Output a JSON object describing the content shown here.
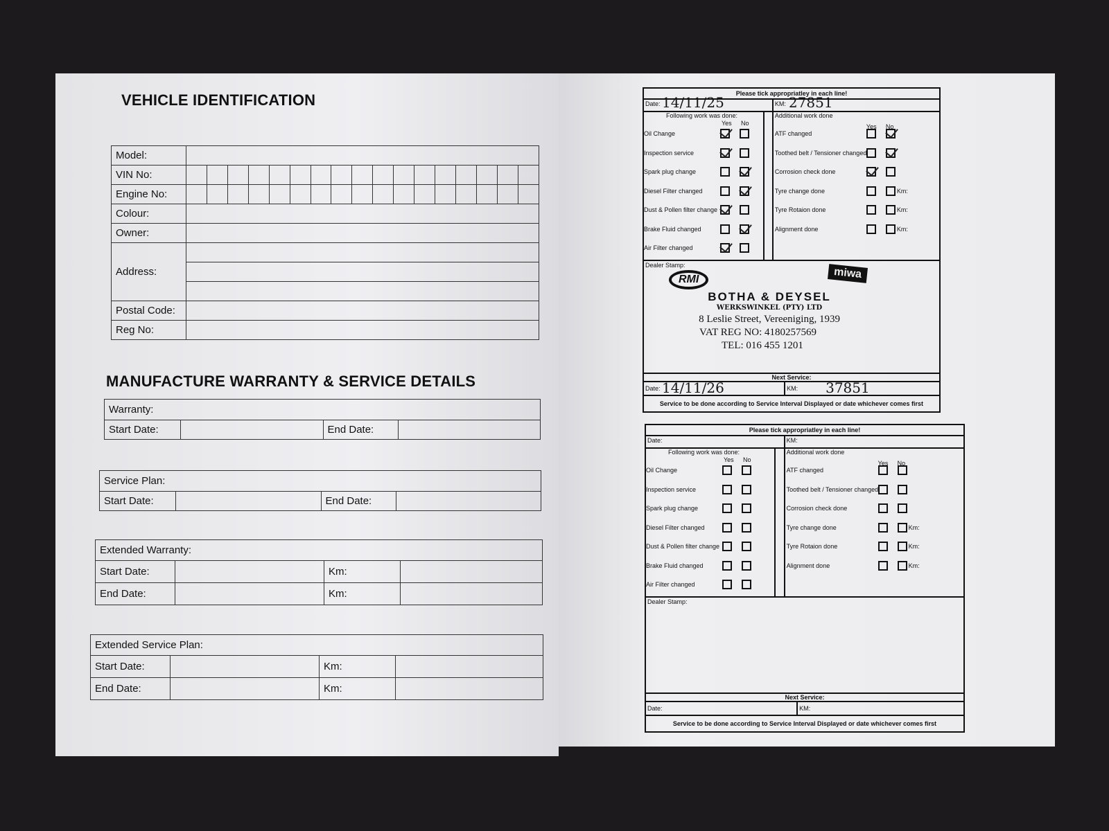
{
  "left": {
    "title": "VEHICLE IDENTIFICATION",
    "id_rows": [
      "Model:",
      "VIN No:",
      "Engine No:",
      "Colour:",
      "Owner:",
      "Address:",
      "Postal Code:",
      "Reg No:"
    ],
    "section2_title": "MANUFACTURE WARRANTY & SERVICE DETAILS",
    "warranty": {
      "title": "Warranty:",
      "start": "Start Date:",
      "end": "End Date:"
    },
    "service_plan": {
      "title": "Service Plan:",
      "start": "Start Date:",
      "end": "End Date:"
    },
    "extended_warranty": {
      "title": "Extended Warranty:",
      "start": "Start Date:",
      "end": "End Date:",
      "km": "Km:"
    },
    "extended_service_plan": {
      "title": "Extended Service Plan:",
      "start": "Start Date:",
      "end": "End Date:",
      "km": "Km:"
    }
  },
  "right": {
    "cards": [
      {
        "header": "Please tick appropriatley in each line!",
        "date_label": "Date:",
        "date_value": "14/11/25",
        "km_label": "KM:",
        "km_value": "27851",
        "left_title": "Following work was done:",
        "right_title": "Additional work done",
        "yes": "Yes",
        "no": "No",
        "work": [
          {
            "label": "Oil Change",
            "state": "yes"
          },
          {
            "label": "Inspection service",
            "state": "yes"
          },
          {
            "label": "Spark plug change",
            "state": "no"
          },
          {
            "label": "Diesel Filter changed",
            "state": "no"
          },
          {
            "label": "Dust & Pollen filter change",
            "state": "yes"
          },
          {
            "label": "Brake Fluid changed",
            "state": "no"
          },
          {
            "label": "Air Filter changed",
            "state": "yes"
          }
        ],
        "additional": [
          {
            "label": "ATF changed",
            "state": "no"
          },
          {
            "label": "Toothed belt / Tensioner changed",
            "state": "no"
          },
          {
            "label": "Corrosion check done",
            "state": "yes"
          },
          {
            "label": "Tyre change done",
            "state": "",
            "km": "Km:"
          },
          {
            "label": "Tyre Rotaion done",
            "state": "",
            "km": "Km:"
          },
          {
            "label": "Alignment done",
            "state": "",
            "km": "Km:"
          }
        ],
        "stamp_label": "Dealer Stamp:",
        "stamp": {
          "logo1": "RMI",
          "logo2": "miwa",
          "name": "BOTHA & DEYSEL",
          "sub": "WERKSWINKEL (PTY) LTD",
          "address": "8 Leslie Street, Vereeniging, 1939",
          "vat": "VAT REG NO: 4180257569",
          "tel": "TEL: 016 455 1201"
        },
        "next_service": "Next Service:",
        "next_date_label": "Date:",
        "next_date_value": "14/11/26",
        "next_km_label": "KM:",
        "next_km_value": "37851",
        "footer": "Service to be done according to Service Interval Displayed or date whichever comes first"
      },
      {
        "header": "Please tick appropriatley in each line!",
        "date_label": "Date:",
        "date_value": "",
        "km_label": "KM:",
        "km_value": "",
        "left_title": "Following work was done:",
        "right_title": "Additional work done",
        "yes": "Yes",
        "no": "No",
        "work": [
          {
            "label": "Oil Change",
            "state": ""
          },
          {
            "label": "Inspection service",
            "state": ""
          },
          {
            "label": "Spark plug change",
            "state": ""
          },
          {
            "label": "Diesel Filter changed",
            "state": ""
          },
          {
            "label": "Dust & Pollen filter change",
            "state": ""
          },
          {
            "label": "Brake Fluid changed",
            "state": ""
          },
          {
            "label": "Air Filter changed",
            "state": ""
          }
        ],
        "additional": [
          {
            "label": "ATF changed",
            "state": ""
          },
          {
            "label": "Toothed belt / Tensioner changed",
            "state": ""
          },
          {
            "label": "Corrosion check done",
            "state": ""
          },
          {
            "label": "Tyre change done",
            "state": "",
            "km": "Km:"
          },
          {
            "label": "Tyre Rotaion done",
            "state": "",
            "km": "Km:"
          },
          {
            "label": "Alignment done",
            "state": "",
            "km": "Km:"
          }
        ],
        "stamp_label": "Dealer Stamp:",
        "next_service": "Next Service:",
        "next_date_label": "Date:",
        "next_date_value": "",
        "next_km_label": "KM:",
        "next_km_value": "",
        "footer": "Service to be done according to Service Interval Displayed or date whichever comes first"
      }
    ]
  }
}
